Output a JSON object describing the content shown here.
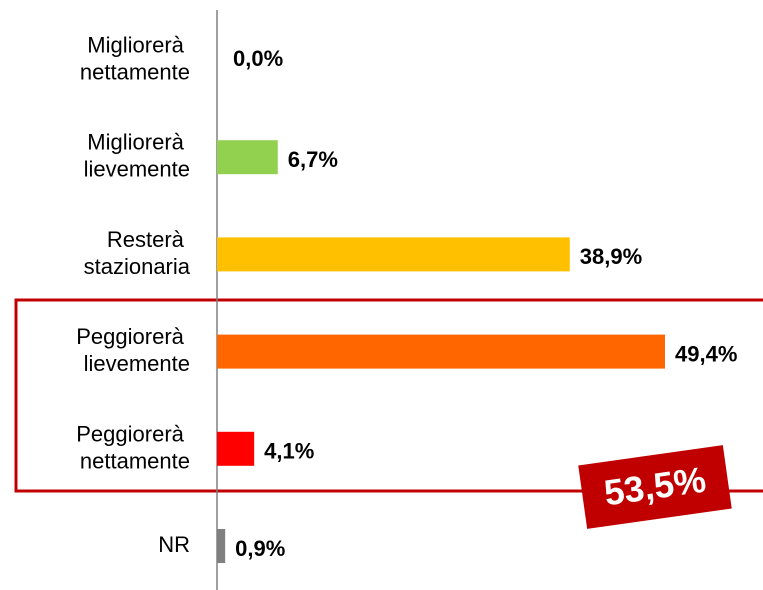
{
  "chart_data": {
    "type": "hbar",
    "categories": [
      "Migliorerà nettamente",
      "Migliorerà lievemente",
      "Resterà stazionaria",
      "Peggiorerà lievemente",
      "Peggiorerà nettamente",
      "NR"
    ],
    "values": [
      0.0,
      6.7,
      38.9,
      49.4,
      4.1,
      0.9
    ],
    "value_labels": [
      "0,0%",
      "6,7%",
      "38,9%",
      "49,4%",
      "4,1%",
      "0,9%"
    ],
    "colors": [
      "#92d050",
      "#92d050",
      "#ffc000",
      "#ff6600",
      "#ff0000",
      "#808080"
    ],
    "annotation": "53,5%"
  }
}
